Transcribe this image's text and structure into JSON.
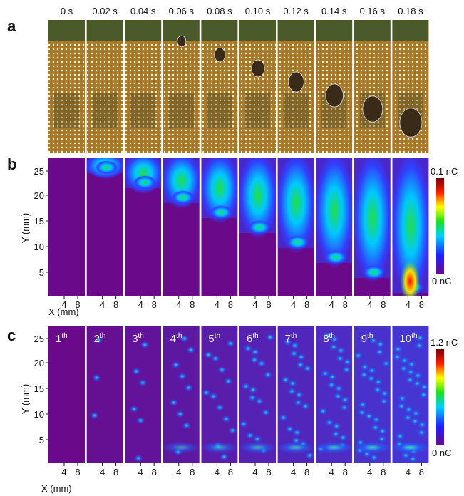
{
  "panel_a": {
    "label": "a",
    "times": [
      "0 s",
      "0.02 s",
      "0.04 s",
      "0.06 s",
      "0.08 s",
      "0.10 s",
      "0.12 s",
      "0.14 s",
      "0.16 s",
      "0.18 s"
    ]
  },
  "panel_b": {
    "label": "b",
    "y_axis_label": "Y (mm)",
    "y_ticks": [
      "25",
      "20",
      "15",
      "10",
      "5"
    ],
    "x_ticks": [
      "4",
      "8"
    ],
    "x_axis_label": "X (mm)",
    "colorbar_max": "0.1 nC",
    "colorbar_min": "0 nC"
  },
  "panel_c": {
    "label": "c",
    "y_axis_label": "Y (mm)",
    "y_ticks": [
      "25",
      "20",
      "15",
      "10",
      "5"
    ],
    "x_ticks": [
      "4",
      "8"
    ],
    "x_axis_label": "X (mm)",
    "colorbar_max": "1.2 nC",
    "colorbar_min": "0 nC",
    "cycles": [
      {
        "number": "1",
        "suffix": "th"
      },
      {
        "number": "2",
        "suffix": "th"
      },
      {
        "number": "3",
        "suffix": "th"
      },
      {
        "number": "4",
        "suffix": "th"
      },
      {
        "number": "5",
        "suffix": "th"
      },
      {
        "number": "6",
        "suffix": "th"
      },
      {
        "number": "7",
        "suffix": "th"
      },
      {
        "number": "8",
        "suffix": "th"
      },
      {
        "number": "9",
        "suffix": "th"
      },
      {
        "number": "10",
        "suffix": "th"
      }
    ]
  }
}
